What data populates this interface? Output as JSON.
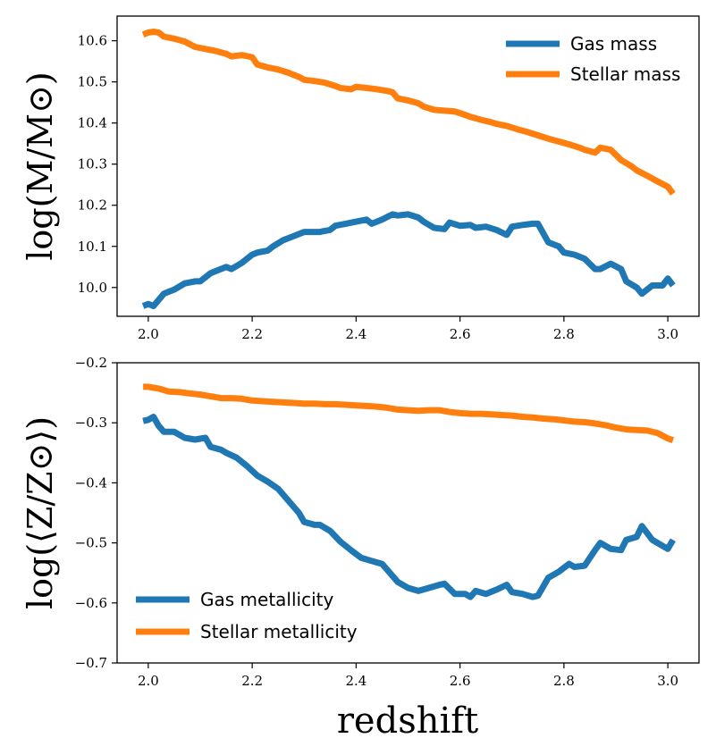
{
  "chart_data": [
    {
      "type": "line",
      "title": "",
      "xlabel": "",
      "ylabel": "log(M/M⊙)",
      "xlim": [
        1.94,
        3.06
      ],
      "ylim": [
        9.93,
        10.66
      ],
      "xticks": [
        2.0,
        2.2,
        2.4,
        2.6,
        2.8,
        3.0
      ],
      "xtick_labels": [
        "2.0",
        "2.2",
        "2.4",
        "2.6",
        "2.8",
        "3.0"
      ],
      "yticks": [
        10.0,
        10.1,
        10.2,
        10.3,
        10.4,
        10.5,
        10.6
      ],
      "ytick_labels": [
        "10.0",
        "10.1",
        "10.2",
        "10.3",
        "10.4",
        "10.5",
        "10.6"
      ],
      "legend_position": "top-right",
      "series": [
        {
          "name": "Gas mass",
          "color": "#1f77b4",
          "x": [
            1.99,
            2.0,
            2.01,
            2.03,
            2.04,
            2.05,
            2.07,
            2.09,
            2.1,
            2.12,
            2.13,
            2.15,
            2.16,
            2.18,
            2.2,
            2.21,
            2.23,
            2.24,
            2.26,
            2.28,
            2.3,
            2.32,
            2.33,
            2.35,
            2.36,
            2.38,
            2.4,
            2.42,
            2.43,
            2.45,
            2.47,
            2.48,
            2.5,
            2.52,
            2.53,
            2.55,
            2.57,
            2.58,
            2.6,
            2.62,
            2.63,
            2.65,
            2.67,
            2.69,
            2.7,
            2.72,
            2.74,
            2.75,
            2.77,
            2.79,
            2.8,
            2.82,
            2.84,
            2.86,
            2.87,
            2.89,
            2.91,
            2.92,
            2.94,
            2.95,
            2.97,
            2.99,
            3.0,
            3.01
          ],
          "values": [
            9.955,
            9.96,
            9.955,
            9.985,
            9.99,
            9.995,
            10.01,
            10.015,
            10.015,
            10.035,
            10.04,
            10.05,
            10.045,
            10.06,
            10.08,
            10.085,
            10.09,
            10.1,
            10.115,
            10.125,
            10.135,
            10.135,
            10.135,
            10.14,
            10.15,
            10.155,
            10.16,
            10.165,
            10.155,
            10.165,
            10.178,
            10.175,
            10.178,
            10.17,
            10.16,
            10.145,
            10.142,
            10.158,
            10.15,
            10.152,
            10.145,
            10.148,
            10.14,
            10.128,
            10.148,
            10.152,
            10.155,
            10.155,
            10.11,
            10.1,
            10.085,
            10.08,
            10.07,
            10.045,
            10.045,
            10.058,
            10.045,
            10.015,
            10.0,
            9.985,
            10.005,
            10.005,
            10.022,
            10.005
          ]
        },
        {
          "name": "Stellar mass",
          "color": "#ff7f0e",
          "x": [
            1.99,
            2.0,
            2.01,
            2.02,
            2.03,
            2.05,
            2.07,
            2.09,
            2.11,
            2.13,
            2.15,
            2.16,
            2.18,
            2.2,
            2.21,
            2.23,
            2.25,
            2.27,
            2.29,
            2.3,
            2.32,
            2.34,
            2.36,
            2.37,
            2.39,
            2.4,
            2.42,
            2.44,
            2.46,
            2.47,
            2.48,
            2.5,
            2.52,
            2.53,
            2.55,
            2.57,
            2.59,
            2.6,
            2.62,
            2.64,
            2.66,
            2.67,
            2.69,
            2.71,
            2.73,
            2.75,
            2.77,
            2.79,
            2.81,
            2.83,
            2.84,
            2.86,
            2.87,
            2.89,
            2.91,
            2.93,
            2.94,
            2.96,
            2.98,
            3.0,
            3.01
          ],
          "values": [
            10.615,
            10.62,
            10.622,
            10.62,
            10.61,
            10.605,
            10.598,
            10.585,
            10.58,
            10.575,
            10.568,
            10.562,
            10.565,
            10.56,
            10.542,
            10.535,
            10.53,
            10.522,
            10.512,
            10.505,
            10.502,
            10.498,
            10.49,
            10.485,
            10.482,
            10.488,
            10.485,
            10.482,
            10.478,
            10.475,
            10.46,
            10.455,
            10.448,
            10.44,
            10.432,
            10.43,
            10.428,
            10.424,
            10.415,
            10.408,
            10.402,
            10.398,
            10.393,
            10.385,
            10.378,
            10.37,
            10.362,
            10.355,
            10.348,
            10.34,
            10.335,
            10.328,
            10.34,
            10.335,
            10.31,
            10.295,
            10.285,
            10.272,
            10.258,
            10.245,
            10.228
          ]
        }
      ]
    },
    {
      "type": "line",
      "title": "",
      "xlabel": "redshift",
      "ylabel": "log(⟨Z/Z⊙⟩)",
      "xlim": [
        1.94,
        3.06
      ],
      "ylim": [
        -0.7,
        -0.2
      ],
      "xticks": [
        2.0,
        2.2,
        2.4,
        2.6,
        2.8,
        3.0
      ],
      "xtick_labels": [
        "2.0",
        "2.2",
        "2.4",
        "2.6",
        "2.8",
        "3.0"
      ],
      "yticks": [
        -0.7,
        -0.6,
        -0.5,
        -0.4,
        -0.3,
        -0.2
      ],
      "ytick_labels": [
        "−0.7",
        "−0.6",
        "−0.5",
        "−0.4",
        "−0.3",
        "−0.2"
      ],
      "legend_position": "bottom-left",
      "series": [
        {
          "name": "Gas metallicity",
          "color": "#1f77b4",
          "x": [
            1.99,
            2.0,
            2.01,
            2.02,
            2.03,
            2.05,
            2.07,
            2.09,
            2.11,
            2.12,
            2.14,
            2.15,
            2.17,
            2.19,
            2.21,
            2.23,
            2.25,
            2.27,
            2.29,
            2.3,
            2.32,
            2.33,
            2.35,
            2.37,
            2.39,
            2.41,
            2.43,
            2.45,
            2.46,
            2.48,
            2.5,
            2.52,
            2.54,
            2.56,
            2.57,
            2.59,
            2.61,
            2.62,
            2.63,
            2.65,
            2.67,
            2.69,
            2.7,
            2.72,
            2.74,
            2.75,
            2.77,
            2.79,
            2.81,
            2.82,
            2.84,
            2.86,
            2.87,
            2.89,
            2.91,
            2.92,
            2.94,
            2.95,
            2.97,
            2.99,
            3.0,
            3.01
          ],
          "values": [
            -0.297,
            -0.295,
            -0.29,
            -0.305,
            -0.315,
            -0.315,
            -0.325,
            -0.328,
            -0.325,
            -0.34,
            -0.345,
            -0.35,
            -0.358,
            -0.372,
            -0.388,
            -0.398,
            -0.41,
            -0.43,
            -0.45,
            -0.465,
            -0.47,
            -0.47,
            -0.48,
            -0.498,
            -0.512,
            -0.525,
            -0.53,
            -0.535,
            -0.545,
            -0.565,
            -0.575,
            -0.58,
            -0.575,
            -0.57,
            -0.568,
            -0.585,
            -0.585,
            -0.59,
            -0.58,
            -0.585,
            -0.578,
            -0.57,
            -0.582,
            -0.585,
            -0.59,
            -0.588,
            -0.558,
            -0.548,
            -0.535,
            -0.54,
            -0.538,
            -0.512,
            -0.5,
            -0.51,
            -0.512,
            -0.495,
            -0.49,
            -0.472,
            -0.495,
            -0.505,
            -0.51,
            -0.495
          ]
        },
        {
          "name": "Stellar metallicity",
          "color": "#ff7f0e",
          "x": [
            1.99,
            2.0,
            2.02,
            2.04,
            2.06,
            2.08,
            2.1,
            2.12,
            2.14,
            2.16,
            2.18,
            2.2,
            2.22,
            2.24,
            2.26,
            2.28,
            2.3,
            2.32,
            2.34,
            2.36,
            2.38,
            2.4,
            2.42,
            2.44,
            2.46,
            2.48,
            2.5,
            2.52,
            2.54,
            2.56,
            2.58,
            2.6,
            2.62,
            2.64,
            2.66,
            2.68,
            2.7,
            2.72,
            2.74,
            2.76,
            2.78,
            2.8,
            2.82,
            2.84,
            2.86,
            2.88,
            2.9,
            2.92,
            2.94,
            2.96,
            2.98,
            3.0,
            3.01
          ],
          "values": [
            -0.24,
            -0.24,
            -0.243,
            -0.248,
            -0.249,
            -0.251,
            -0.253,
            -0.256,
            -0.259,
            -0.259,
            -0.26,
            -0.263,
            -0.264,
            -0.265,
            -0.266,
            -0.267,
            -0.268,
            -0.268,
            -0.269,
            -0.269,
            -0.27,
            -0.271,
            -0.272,
            -0.273,
            -0.275,
            -0.278,
            -0.279,
            -0.28,
            -0.279,
            -0.279,
            -0.282,
            -0.284,
            -0.285,
            -0.285,
            -0.286,
            -0.287,
            -0.288,
            -0.29,
            -0.291,
            -0.293,
            -0.294,
            -0.296,
            -0.298,
            -0.299,
            -0.301,
            -0.304,
            -0.308,
            -0.311,
            -0.312,
            -0.313,
            -0.317,
            -0.326,
            -0.329
          ]
        }
      ]
    }
  ]
}
